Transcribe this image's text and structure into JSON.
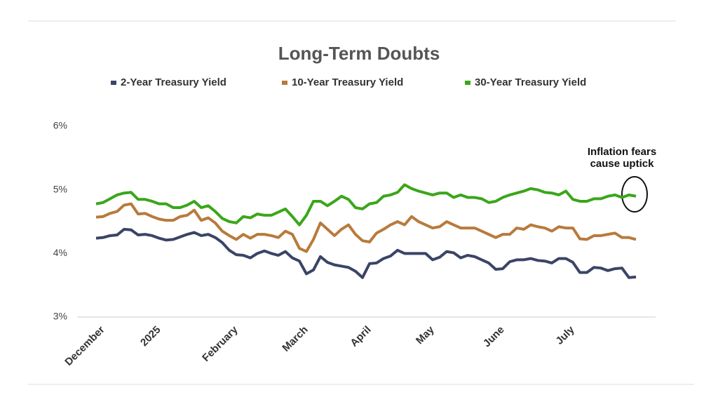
{
  "chart_data": {
    "type": "line",
    "title": "Long-Term Doubts",
    "annotation": [
      "Inflation fears",
      "cause uptick"
    ],
    "categories": [
      null,
      "December",
      null,
      null,
      null,
      null,
      null,
      null,
      null,
      "2025",
      null,
      null,
      null,
      null,
      null,
      null,
      null,
      null,
      null,
      null,
      "February",
      null,
      null,
      null,
      null,
      null,
      null,
      null,
      null,
      null,
      "March",
      null,
      null,
      null,
      null,
      null,
      null,
      null,
      null,
      "April",
      null,
      null,
      null,
      null,
      null,
      null,
      null,
      null,
      "May",
      null,
      null,
      null,
      null,
      null,
      null,
      null,
      null,
      null,
      "June",
      null,
      null,
      null,
      null,
      null,
      null,
      null,
      null,
      null,
      "July",
      null,
      null,
      null,
      null,
      null,
      null,
      null,
      null,
      null
    ],
    "series": [
      {
        "name": "2-Year Treasury Yield",
        "color": "#3b4466",
        "values": [
          4.24,
          4.25,
          4.28,
          4.29,
          4.38,
          4.37,
          4.29,
          4.3,
          4.28,
          4.24,
          4.21,
          4.22,
          4.26,
          4.3,
          4.33,
          4.28,
          4.3,
          4.25,
          4.17,
          4.05,
          3.98,
          3.97,
          3.93,
          4.0,
          4.04,
          4.0,
          3.97,
          4.03,
          3.93,
          3.88,
          3.68,
          3.74,
          3.95,
          3.86,
          3.82,
          3.8,
          3.78,
          3.72,
          3.62,
          3.84,
          3.85,
          3.92,
          3.96,
          4.05,
          4.0,
          4.0,
          4.0,
          4.0,
          3.9,
          3.94,
          4.03,
          4.01,
          3.93,
          3.97,
          3.95,
          3.9,
          3.85,
          3.75,
          3.76,
          3.87,
          3.9,
          3.9,
          3.92,
          3.89,
          3.88,
          3.85,
          3.92,
          3.92,
          3.86,
          3.7,
          3.7,
          3.78,
          3.77,
          3.73,
          3.76,
          3.77,
          3.62,
          3.63
        ]
      },
      {
        "name": "10-Year Treasury Yield",
        "color": "#b87a3c",
        "values": [
          4.57,
          4.58,
          4.63,
          4.66,
          4.76,
          4.78,
          4.62,
          4.63,
          4.58,
          4.54,
          4.52,
          4.52,
          4.58,
          4.6,
          4.68,
          4.52,
          4.56,
          4.48,
          4.35,
          4.28,
          4.22,
          4.3,
          4.24,
          4.3,
          4.3,
          4.28,
          4.25,
          4.35,
          4.3,
          4.08,
          4.03,
          4.22,
          4.48,
          4.38,
          4.28,
          4.38,
          4.45,
          4.3,
          4.2,
          4.18,
          4.32,
          4.38,
          4.45,
          4.5,
          4.45,
          4.58,
          4.5,
          4.45,
          4.4,
          4.42,
          4.5,
          4.45,
          4.4,
          4.4,
          4.4,
          4.35,
          4.3,
          4.25,
          4.3,
          4.3,
          4.4,
          4.38,
          4.45,
          4.42,
          4.4,
          4.35,
          4.42,
          4.4,
          4.4,
          4.23,
          4.22,
          4.28,
          4.28,
          4.3,
          4.32,
          4.25,
          4.25,
          4.22
        ]
      },
      {
        "name": "30-Year Treasury Yield",
        "color": "#3aa61a",
        "values": [
          4.78,
          4.8,
          4.86,
          4.92,
          4.95,
          4.96,
          4.85,
          4.85,
          4.82,
          4.78,
          4.78,
          4.72,
          4.72,
          4.76,
          4.82,
          4.72,
          4.75,
          4.66,
          4.55,
          4.5,
          4.48,
          4.58,
          4.56,
          4.62,
          4.6,
          4.6,
          4.65,
          4.7,
          4.58,
          4.45,
          4.6,
          4.82,
          4.82,
          4.75,
          4.82,
          4.9,
          4.85,
          4.72,
          4.7,
          4.78,
          4.8,
          4.9,
          4.92,
          4.96,
          5.08,
          5.02,
          4.98,
          4.95,
          4.92,
          4.95,
          4.95,
          4.88,
          4.92,
          4.88,
          4.88,
          4.86,
          4.8,
          4.82,
          4.88,
          4.92,
          4.95,
          4.98,
          5.02,
          5.0,
          4.96,
          4.95,
          4.92,
          4.98,
          4.85,
          4.82,
          4.82,
          4.86,
          4.86,
          4.9,
          4.92,
          4.88,
          4.92,
          4.9
        ]
      }
    ],
    "ylim": [
      3,
      6
    ],
    "yticks": [
      {
        "value": 3,
        "label": "3%"
      },
      {
        "value": 4,
        "label": "4%"
      },
      {
        "value": 5,
        "label": "5%"
      },
      {
        "value": 6,
        "label": "6%"
      }
    ],
    "grid": false
  }
}
